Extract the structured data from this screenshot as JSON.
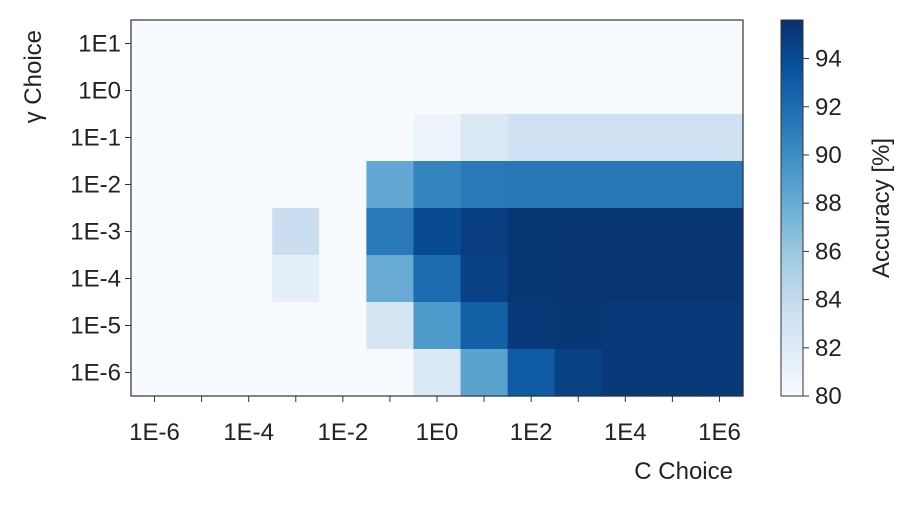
{
  "chart_data": {
    "type": "heatmap",
    "xlabel": "C Choice",
    "ylabel": "γ Choice",
    "colorbar_label": "Accuracy [%]",
    "colormap": "Blues",
    "color_low": "#f7fbff",
    "color_high": "#08306b",
    "vmin": 80,
    "vmax": 95.6,
    "x_values": [
      "1E-6",
      "1E-5",
      "1E-4",
      "1E-3",
      "1E-2",
      "1E-1",
      "1E0",
      "1E1",
      "1E2",
      "1E3",
      "1E4",
      "1E5",
      "1E6"
    ],
    "y_values": [
      "1E1",
      "1E0",
      "1E-1",
      "1E-2",
      "1E-3",
      "1E-4",
      "1E-5",
      "1E-6"
    ],
    "x_tick_labels": [
      "1E-6",
      "1E-4",
      "1E-2",
      "1E0",
      "1E2",
      "1E4",
      "1E6"
    ],
    "y_tick_labels": [
      "1E1",
      "1E0",
      "1E-1",
      "1E-2",
      "1E-3",
      "1E-4",
      "1E-5",
      "1E-6"
    ],
    "colorbar_ticks": [
      "80",
      "82",
      "84",
      "86",
      "88",
      "90",
      "92",
      "94"
    ],
    "values": [
      [
        80,
        80,
        80,
        80,
        80,
        80,
        80,
        80,
        80,
        80,
        80,
        80,
        80
      ],
      [
        80,
        80,
        80,
        80,
        80,
        80,
        80,
        80.1,
        80.1,
        80.1,
        80.1,
        80.1,
        80.1
      ],
      [
        80,
        80,
        80,
        80,
        80,
        80,
        80.8,
        82.3,
        83.2,
        83.2,
        83.2,
        83.2,
        83.2
      ],
      [
        80,
        80,
        80,
        80,
        80,
        88.2,
        90.5,
        91.2,
        91.3,
        91.3,
        91.3,
        91.3,
        91.3
      ],
      [
        80,
        80,
        80,
        83.5,
        80,
        91.2,
        94.0,
        94.8,
        95.2,
        95.3,
        95.3,
        95.3,
        95.3
      ],
      [
        80,
        80,
        80,
        81.5,
        80,
        88.0,
        92.0,
        94.6,
        95.2,
        95.3,
        95.3,
        95.3,
        95.3
      ],
      [
        80,
        80,
        80,
        80,
        80,
        82.7,
        89.2,
        92.7,
        95.0,
        95.2,
        95.0,
        95.0,
        95.0
      ],
      [
        80,
        80,
        80,
        80,
        80,
        80,
        82.2,
        88.6,
        93.0,
        94.6,
        95.0,
        95.0,
        95.0
      ]
    ]
  }
}
